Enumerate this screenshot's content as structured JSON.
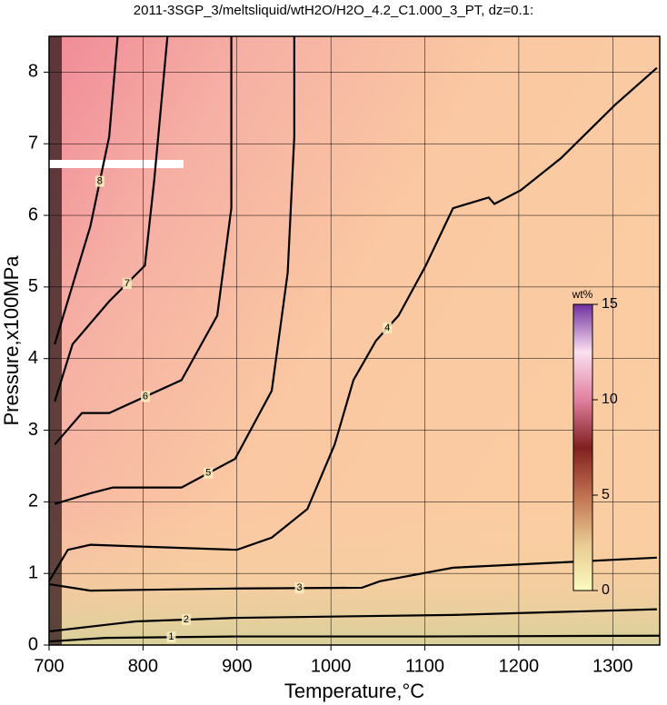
{
  "chart_data": {
    "type": "contour",
    "title": "2011-3SGP_3/meltsliquid/wtH2O/H2O_4.2_C1.000_3_PT, dz=0.1:",
    "x_label": "Temperature,°C",
    "y_label": "Pressure,x100MPa",
    "xlim": [
      700,
      1350
    ],
    "ylim": [
      0,
      8.5
    ],
    "xticks": [
      700,
      800,
      900,
      1000,
      1100,
      1200,
      1300
    ],
    "yticks": [
      0,
      1,
      2,
      3,
      4,
      5,
      6,
      7,
      8
    ],
    "grid": true,
    "color": "#000000",
    "contours": [
      {
        "level": 1,
        "x": [
          700,
          760,
          900,
          1100,
          1350
        ],
        "y": [
          0.05,
          0.1,
          0.12,
          0.12,
          0.13
        ]
      },
      {
        "level": 2,
        "x": [
          700,
          792,
          900,
          1130,
          1347
        ],
        "y": [
          0.19,
          0.33,
          0.38,
          0.42,
          0.5
        ]
      },
      {
        "level": 3,
        "x": [
          700,
          744,
          900,
          1033,
          1052,
          1130,
          1347
        ],
        "y": [
          0.85,
          0.76,
          0.79,
          0.8,
          0.89,
          1.08,
          1.22
        ]
      },
      {
        "level": 4,
        "x": [
          700,
          720,
          744,
          900,
          937,
          975,
          1004,
          1024,
          1048,
          1072,
          1101,
          1130,
          1168,
          1174,
          1202,
          1245,
          1303,
          1347
        ],
        "y": [
          0.89,
          1.33,
          1.4,
          1.33,
          1.5,
          1.9,
          2.8,
          3.7,
          4.25,
          4.6,
          5.3,
          6.1,
          6.25,
          6.16,
          6.35,
          6.8,
          7.55,
          8.06
        ]
      },
      {
        "level": 5,
        "x": [
          706,
          744,
          768,
          841,
          898,
          937,
          954,
          961,
          961
        ],
        "y": [
          1.97,
          2.12,
          2.2,
          2.2,
          2.6,
          3.55,
          5.2,
          7.1,
          8.5
        ]
      },
      {
        "level": 6,
        "x": [
          706,
          735,
          764,
          841,
          879,
          894,
          894
        ],
        "y": [
          2.8,
          3.24,
          3.24,
          3.7,
          4.6,
          6.1,
          8.5
        ]
      },
      {
        "level": 7,
        "x": [
          706,
          725,
          764,
          802,
          812,
          826
        ],
        "y": [
          3.4,
          4.2,
          4.8,
          5.3,
          6.5,
          8.5
        ]
      },
      {
        "level": 8,
        "x": [
          706,
          744,
          764,
          773
        ],
        "y": [
          4.2,
          5.85,
          7.1,
          8.5
        ]
      }
    ],
    "colorbar": {
      "label": "wt%",
      "lim": [
        0,
        15
      ],
      "ticks": [
        0,
        5,
        10,
        15
      ],
      "colors": [
        "#fbfbc0",
        "#e8c890",
        "#c07050",
        "#802020",
        "#e080a0",
        "#fbe0f0",
        "#7030a0"
      ]
    }
  }
}
